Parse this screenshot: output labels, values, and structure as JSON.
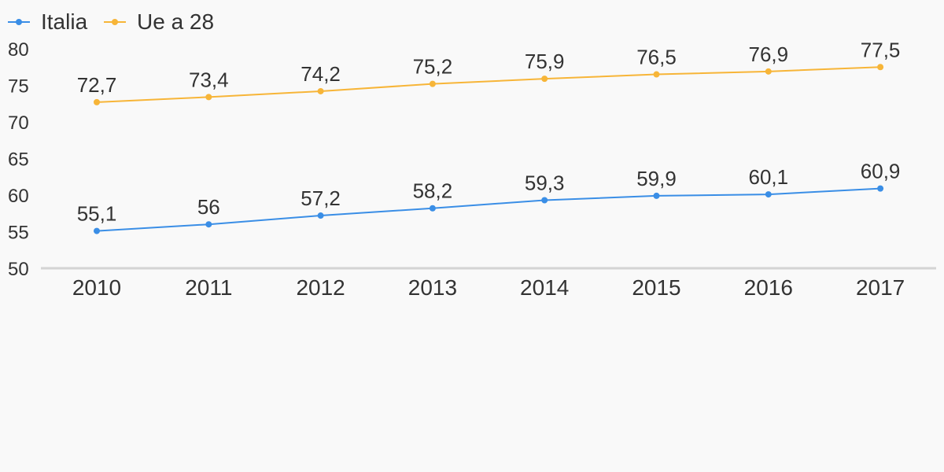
{
  "chart_data": {
    "type": "line",
    "categories": [
      "2010",
      "2011",
      "2012",
      "2013",
      "2014",
      "2015",
      "2016",
      "2017"
    ],
    "series": [
      {
        "name": "Italia",
        "color": "#3a8ee6",
        "values": [
          55.1,
          56,
          57.2,
          58.2,
          59.3,
          59.9,
          60.1,
          60.9
        ],
        "labels": [
          "55,1",
          "56",
          "57,2",
          "58,2",
          "59,3",
          "59,9",
          "60,1",
          "60,9"
        ]
      },
      {
        "name": "Ue a 28",
        "color": "#f7b538",
        "values": [
          72.7,
          73.4,
          74.2,
          75.2,
          75.9,
          76.5,
          76.9,
          77.5
        ],
        "labels": [
          "72,7",
          "73,4",
          "74,2",
          "75,2",
          "75,9",
          "76,5",
          "76,9",
          "77,5"
        ]
      }
    ],
    "yticks": [
      "50",
      "55",
      "60",
      "65",
      "70",
      "75",
      "80"
    ],
    "ylim": [
      50,
      80
    ],
    "grid": false,
    "legend": "top-left",
    "axis_color": "#d4d4d4"
  }
}
